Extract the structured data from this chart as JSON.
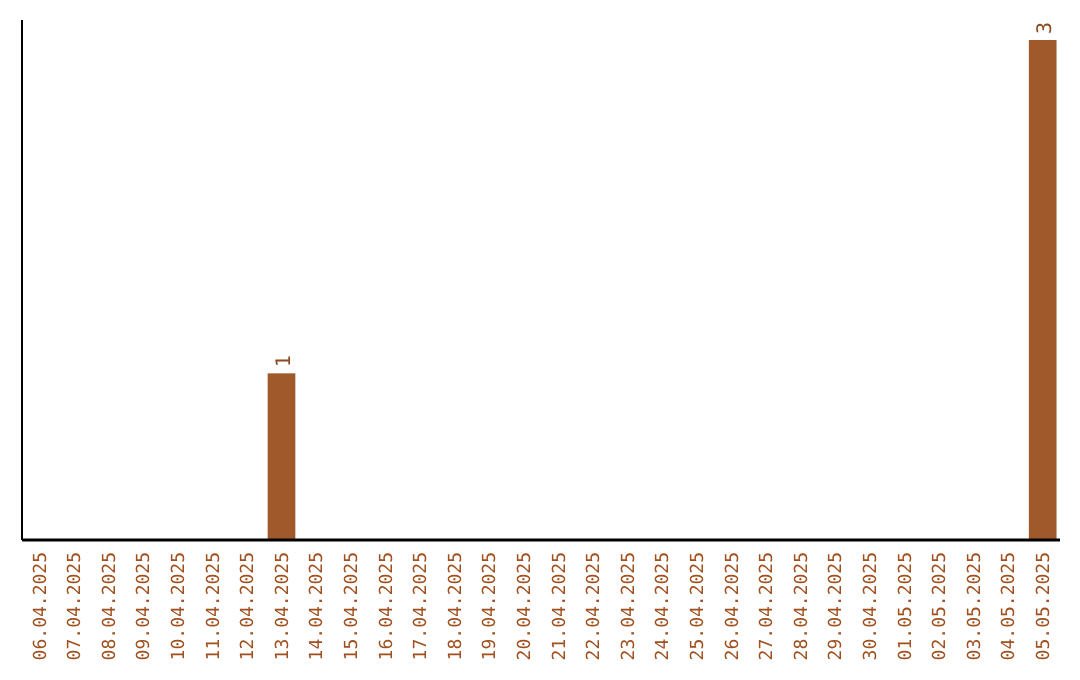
{
  "chart_data": {
    "type": "bar",
    "categories": [
      "06.04.2025",
      "07.04.2025",
      "08.04.2025",
      "09.04.2025",
      "10.04.2025",
      "11.04.2025",
      "12.04.2025",
      "13.04.2025",
      "14.04.2025",
      "15.04.2025",
      "16.04.2025",
      "17.04.2025",
      "18.04.2025",
      "19.04.2025",
      "20.04.2025",
      "21.04.2025",
      "22.04.2025",
      "23.04.2025",
      "24.04.2025",
      "25.04.2025",
      "26.04.2025",
      "27.04.2025",
      "28.04.2025",
      "29.04.2025",
      "30.04.2025",
      "01.05.2025",
      "02.05.2025",
      "03.05.2025",
      "04.05.2025",
      "05.05.2025"
    ],
    "values": [
      0,
      0,
      0,
      0,
      0,
      0,
      0,
      1,
      0,
      0,
      0,
      0,
      0,
      0,
      0,
      0,
      0,
      0,
      0,
      0,
      0,
      0,
      0,
      0,
      0,
      0,
      0,
      0,
      0,
      3
    ],
    "value_labels": [
      null,
      null,
      null,
      null,
      null,
      null,
      null,
      "1",
      null,
      null,
      null,
      null,
      null,
      null,
      null,
      null,
      null,
      null,
      null,
      null,
      null,
      null,
      null,
      null,
      null,
      null,
      null,
      null,
      null,
      "3"
    ],
    "color": "#a0592b",
    "grid": false,
    "tick_labels": "x"
  }
}
